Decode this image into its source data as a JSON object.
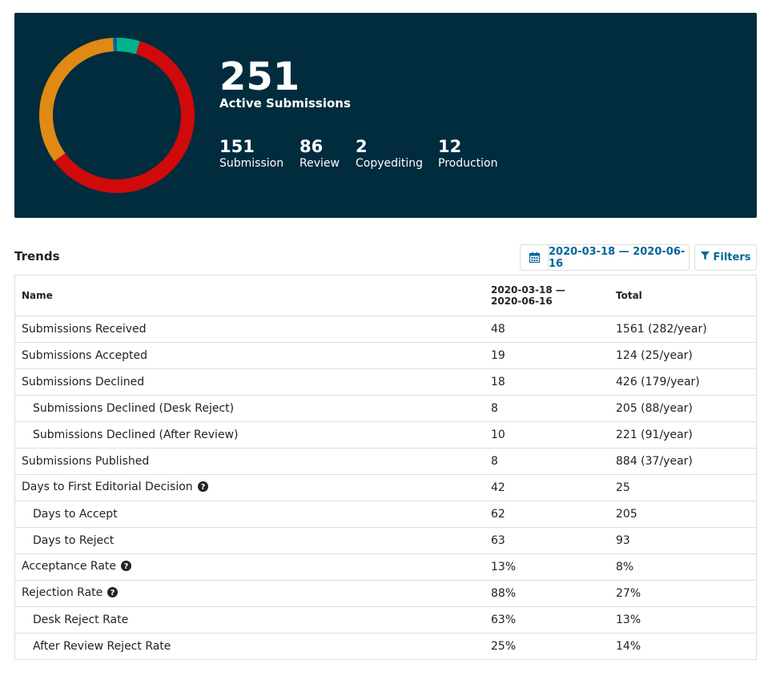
{
  "summary": {
    "total": "251",
    "total_label": "Active Submissions",
    "stages": [
      {
        "count": "151",
        "label": "Submission",
        "color": "#d00a0a"
      },
      {
        "count": "86",
        "label": "Review",
        "color": "#e08914"
      },
      {
        "count": "2",
        "label": "Copyediting",
        "color": "#006798"
      },
      {
        "count": "12",
        "label": "Production",
        "color": "#00b28d"
      }
    ]
  },
  "trends": {
    "title": "Trends",
    "date_range": "2020-03-18 — 2020-06-16",
    "filters_label": "Filters",
    "columns": {
      "name": "Name",
      "range_line1": "2020-03-18 —",
      "range_line2": "2020-06-16",
      "total": "Total"
    },
    "rows": [
      {
        "name": "Submissions Received",
        "range": "48",
        "total": "1561 (282/year)"
      },
      {
        "name": "Submissions Accepted",
        "range": "19",
        "total": "124 (25/year)"
      },
      {
        "name": "Submissions Declined",
        "range": "18",
        "total": "426 (179/year)"
      },
      {
        "name": "Submissions Declined (Desk Reject)",
        "range": "8",
        "total": "205 (88/year)"
      },
      {
        "name": "Submissions Declined (After Review)",
        "range": "10",
        "total": "221 (91/year)"
      },
      {
        "name": "Submissions Published",
        "range": "8",
        "total": "884 (37/year)"
      },
      {
        "name": "Days to First Editorial Decision",
        "range": "42",
        "total": "25"
      },
      {
        "name": "Days to Accept",
        "range": "62",
        "total": "205"
      },
      {
        "name": "Days to Reject",
        "range": "63",
        "total": "93"
      },
      {
        "name": "Acceptance Rate",
        "range": "13%",
        "total": "8%"
      },
      {
        "name": "Rejection Rate",
        "range": "88%",
        "total": "27%"
      },
      {
        "name": "Desk Reject Rate",
        "range": "63%",
        "total": "13%"
      },
      {
        "name": "After Review Reject Rate",
        "range": "25%",
        "total": "14%"
      }
    ]
  }
}
